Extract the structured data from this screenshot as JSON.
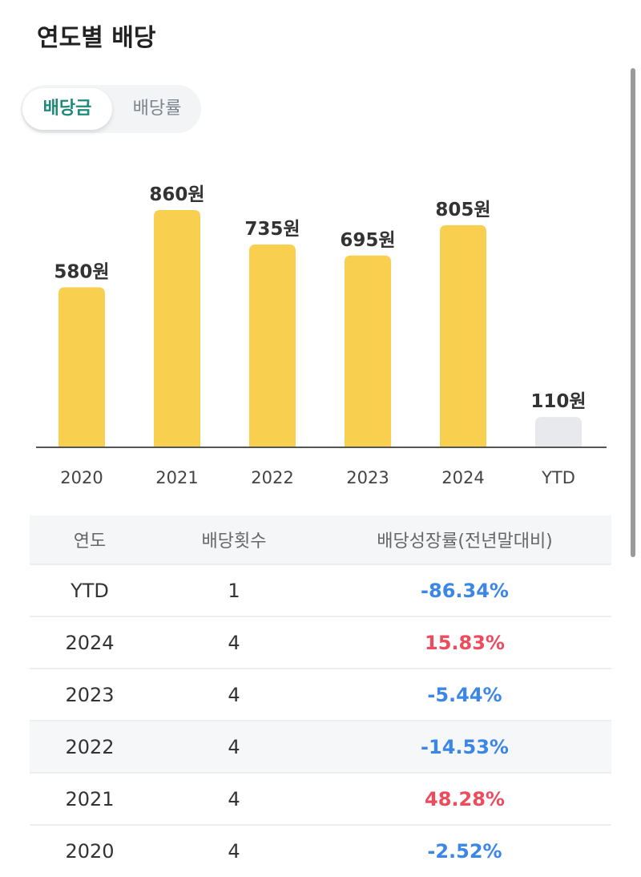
{
  "title": "연도별 배당",
  "toggle": {
    "options": [
      "배당금",
      "배당률"
    ],
    "selected": "배당금"
  },
  "colors": {
    "bar": "#f9cf4f",
    "ytd_bar": "#e7e9ed",
    "accent": "#1f8a7a",
    "negative": "#3b87e6",
    "positive": "#ee4b5c"
  },
  "chart_data": {
    "type": "bar",
    "categories": [
      "2020",
      "2021",
      "2022",
      "2023",
      "2024",
      "YTD"
    ],
    "values": [
      580,
      860,
      735,
      695,
      805,
      110
    ],
    "labels": [
      "580원",
      "860원",
      "735원",
      "695원",
      "805원",
      "110원"
    ],
    "unit": "원",
    "ylim": [
      0,
      860
    ]
  },
  "table": {
    "headers": [
      "연도",
      "배당횟수",
      "배당성장률(전년말대비)"
    ],
    "rows": [
      {
        "year": "YTD",
        "count": "1",
        "growth": "-86.34%",
        "sign": "neg"
      },
      {
        "year": "2024",
        "count": "4",
        "growth": "15.83%",
        "sign": "pos"
      },
      {
        "year": "2023",
        "count": "4",
        "growth": "-5.44%",
        "sign": "neg"
      },
      {
        "year": "2022",
        "count": "4",
        "growth": "-14.53%",
        "sign": "neg"
      },
      {
        "year": "2021",
        "count": "4",
        "growth": "48.28%",
        "sign": "pos"
      },
      {
        "year": "2020",
        "count": "4",
        "growth": "-2.52%",
        "sign": "neg"
      }
    ]
  }
}
